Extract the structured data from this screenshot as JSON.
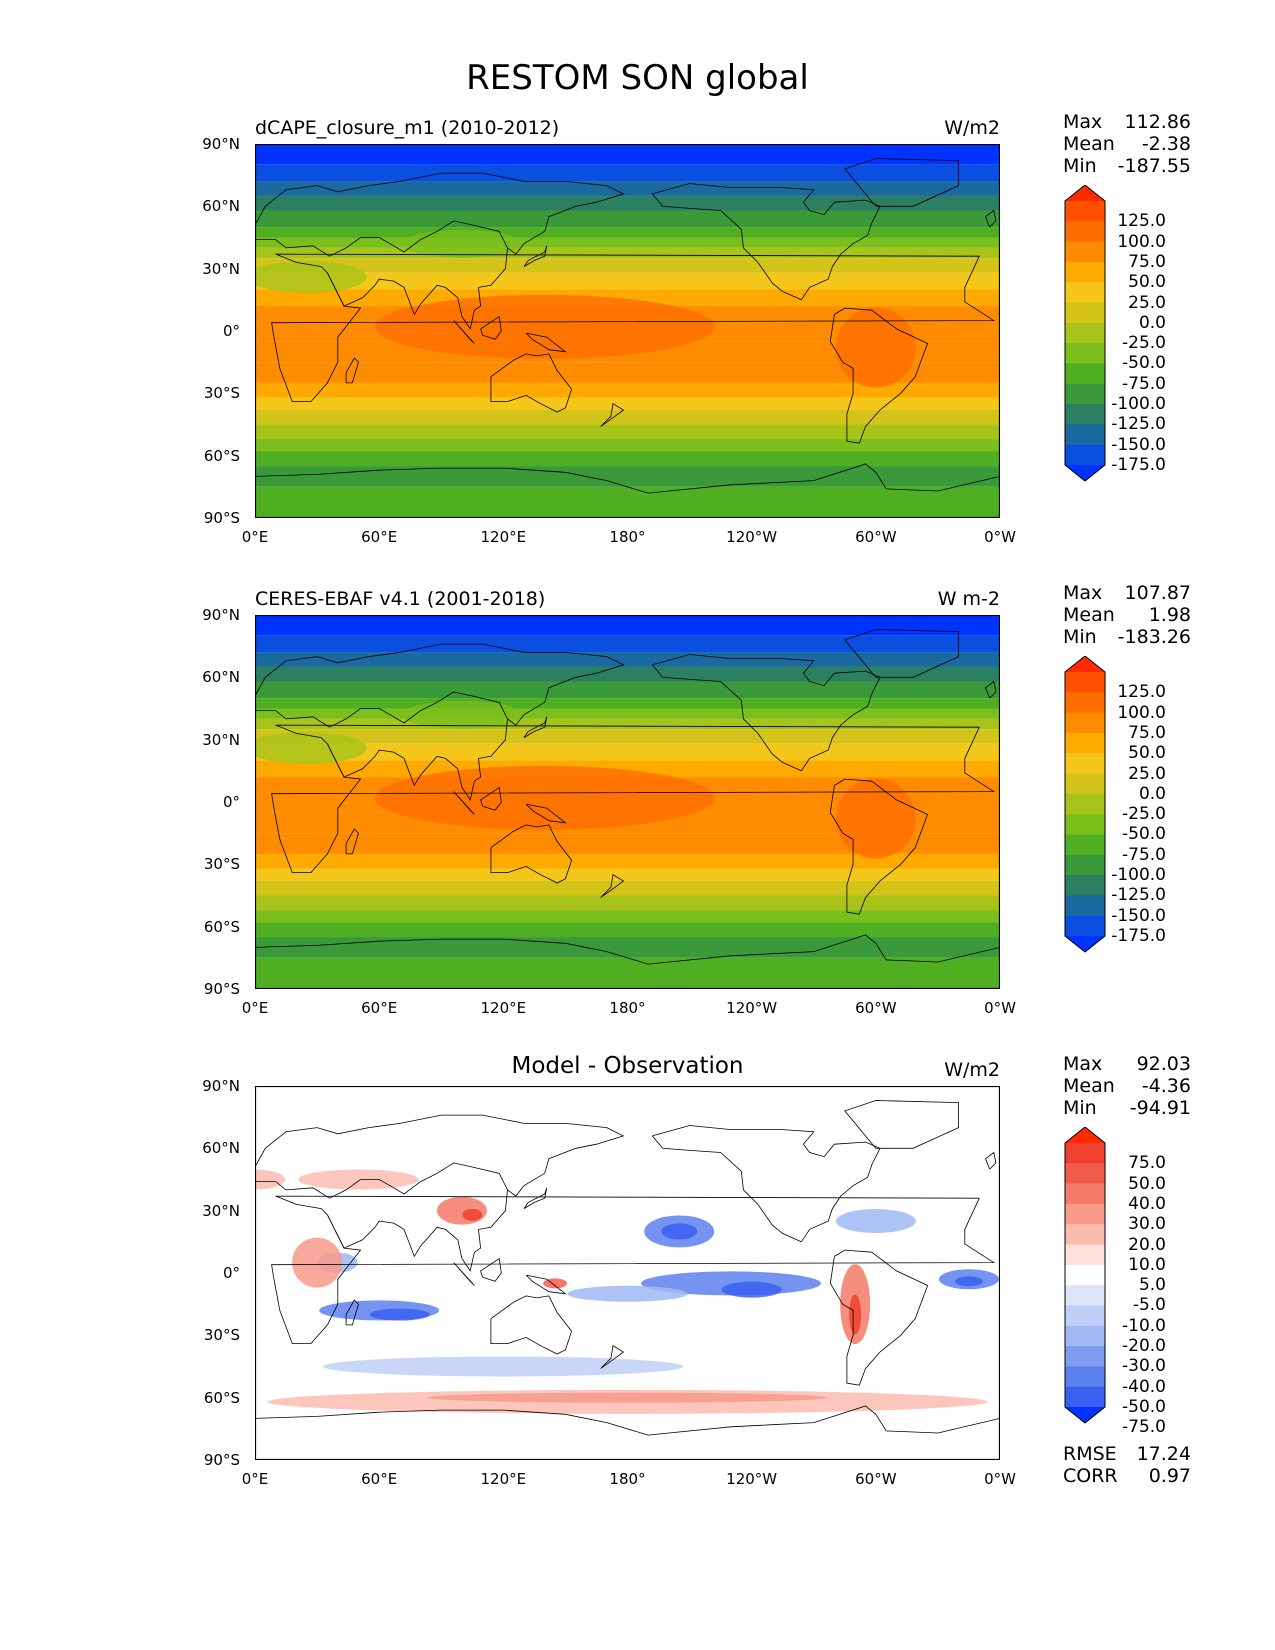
{
  "title": "RESTOM SON global",
  "x_ticks": [
    "0°E",
    "60°E",
    "120°E",
    "180°",
    "120°W",
    "60°W",
    "0°W"
  ],
  "y_ticks": [
    "90°N",
    "60°N",
    "30°N",
    "0°",
    "30°S",
    "60°S",
    "90°S"
  ],
  "panels": [
    {
      "title": "dCAPE_closure_m1 (2010-2012)",
      "title_style": "left",
      "units": "W/m2",
      "stats": {
        "max_label": "Max",
        "max": "112.86",
        "mean_label": "Mean",
        "mean": "-2.38",
        "min_label": "Min",
        "min": "-187.55"
      },
      "colorbar": {
        "labels": [
          "125.0",
          "100.0",
          "75.0",
          "50.0",
          "25.0",
          "0.0",
          "-25.0",
          "-50.0",
          "-75.0",
          "-100.0",
          "-125.0",
          "-150.0",
          "-175.0"
        ],
        "colors": [
          "#ff2a00",
          "#ff5000",
          "#ff6e00",
          "#ff8c00",
          "#ffaa00",
          "#f5c71a",
          "#d4c41a",
          "#a8c41a",
          "#7bbf1c",
          "#4fae22",
          "#3a9a3a",
          "#2a8060",
          "#1a6aa0",
          "#0a4fe0",
          "#0033ff"
        ]
      },
      "map_type": "absolute"
    },
    {
      "title": "CERES-EBAF v4.1 (2001-2018)",
      "title_style": "left",
      "units": "W m-2",
      "stats": {
        "max_label": "Max",
        "max": "107.87",
        "mean_label": "Mean",
        "mean": "1.98",
        "min_label": "Min",
        "min": "-183.26"
      },
      "colorbar": {
        "labels": [
          "125.0",
          "100.0",
          "75.0",
          "50.0",
          "25.0",
          "0.0",
          "-25.0",
          "-50.0",
          "-75.0",
          "-100.0",
          "-125.0",
          "-150.0",
          "-175.0"
        ],
        "colors": [
          "#ff2a00",
          "#ff5000",
          "#ff6e00",
          "#ff8c00",
          "#ffaa00",
          "#f5c71a",
          "#d4c41a",
          "#a8c41a",
          "#7bbf1c",
          "#4fae22",
          "#3a9a3a",
          "#2a8060",
          "#1a6aa0",
          "#0a4fe0",
          "#0033ff"
        ]
      },
      "map_type": "absolute"
    },
    {
      "title": "Model - Observation",
      "title_style": "center",
      "units": "W/m2",
      "stats": {
        "max_label": "Max",
        "max": "92.03",
        "mean_label": "Mean",
        "mean": "-4.36",
        "min_label": "Min",
        "min": "-94.91"
      },
      "extra_stats": {
        "rmse_label": "RMSE",
        "rmse": "17.24",
        "corr_label": "CORR",
        "corr": "0.97"
      },
      "colorbar": {
        "labels": [
          "75.0",
          "50.0",
          "40.0",
          "30.0",
          "20.0",
          "10.0",
          "5.0",
          "-5.0",
          "-10.0",
          "-20.0",
          "-30.0",
          "-40.0",
          "-50.0",
          "-75.0"
        ],
        "colors": [
          "#ff2a00",
          "#f04030",
          "#f25c4c",
          "#f57a6a",
          "#f89a8a",
          "#fbbcb0",
          "#fde0d8",
          "#ffffff",
          "#dde5fb",
          "#bfcff7",
          "#a0b8f3",
          "#7f9df0",
          "#5d80ef",
          "#3a60f2",
          "#0033ff"
        ]
      },
      "map_type": "difference"
    }
  ]
}
